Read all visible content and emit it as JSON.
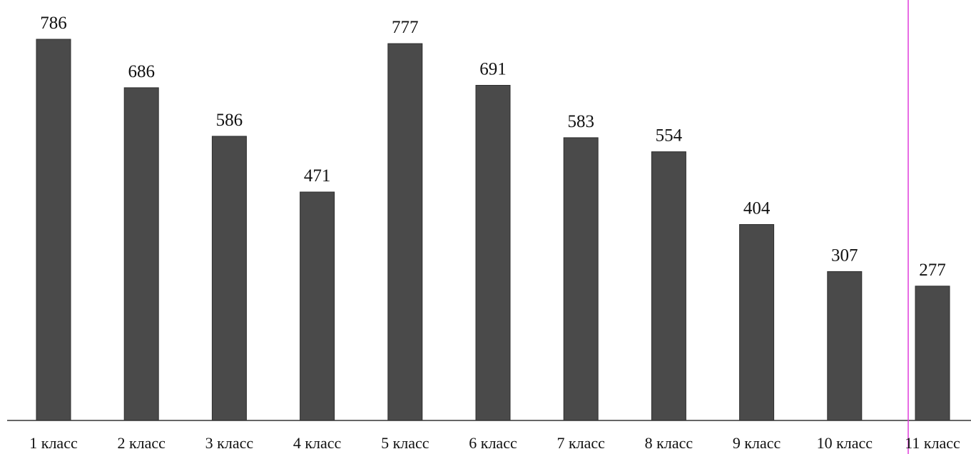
{
  "chart_data": {
    "type": "bar",
    "categories": [
      "1 класс",
      "2 класс",
      "3 класс",
      "4 класс",
      "5 класс",
      "6 класс",
      "7 класс",
      "8 класс",
      "9 класс",
      "10 класс",
      "11 класс"
    ],
    "values": [
      786,
      686,
      586,
      471,
      777,
      691,
      583,
      554,
      404,
      307,
      277
    ],
    "data_labels": [
      "786",
      "686",
      "586",
      "471",
      "777",
      "691",
      "583",
      "554",
      "404",
      "307",
      "277"
    ],
    "title": "",
    "xlabel": "",
    "ylabel": "",
    "ylim": [
      0,
      786
    ],
    "grid": false,
    "legend": "none",
    "colors": {
      "bar": "#4a4a4a",
      "bar_edge": "#2e2e2e",
      "baseline": "#333333",
      "marker_line": "#e03cdc"
    }
  }
}
